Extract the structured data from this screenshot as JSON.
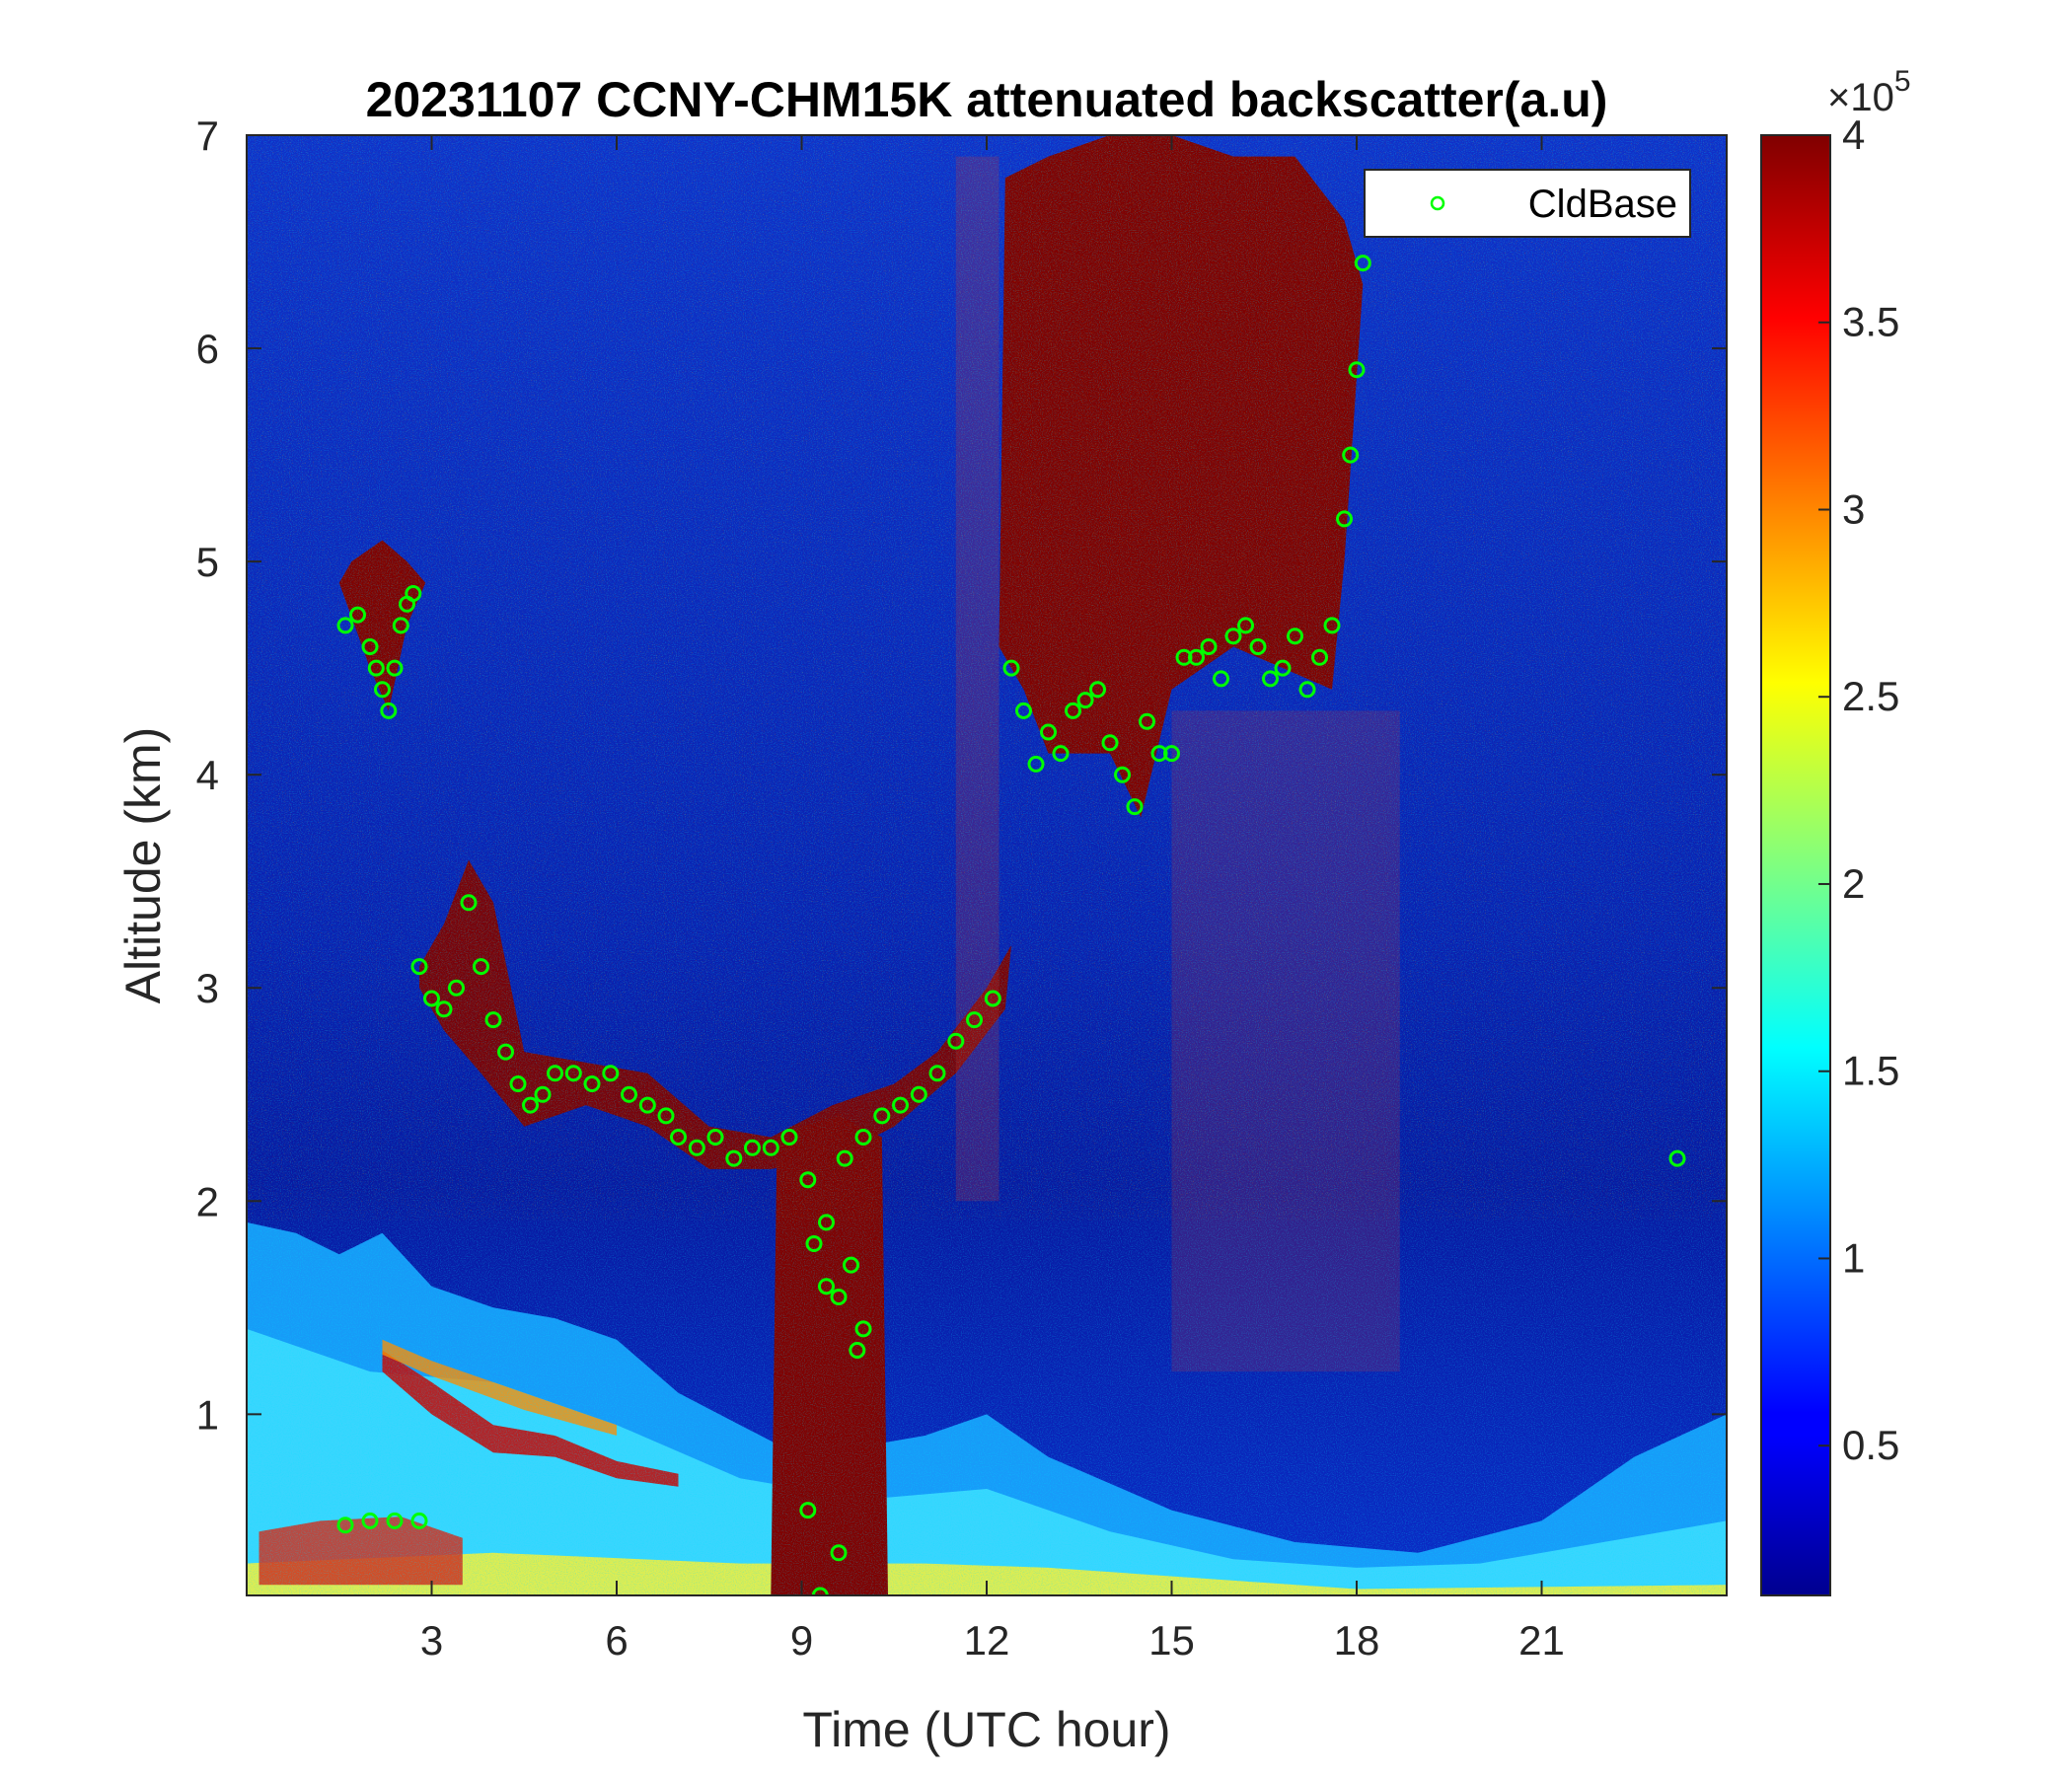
{
  "chart_data": {
    "type": "heatmap",
    "title": "20231107 CCNY-CHM15K attenuated backscatter(a.u)",
    "xlabel": "Time (UTC hour)",
    "ylabel": "Altitude (km)",
    "xlim": [
      0,
      24
    ],
    "ylim": [
      0.15,
      7
    ],
    "xticks": [
      3,
      6,
      9,
      12,
      15,
      18,
      21
    ],
    "yticks": [
      1,
      2,
      3,
      4,
      5,
      6,
      7
    ],
    "colorbar": {
      "colormap": "jet",
      "range": [
        10000,
        400000
      ],
      "exponent_label_prefix": "×10",
      "exponent_label_power": "5",
      "ticks": [
        0.5,
        1,
        1.5,
        2,
        2.5,
        3,
        3.5,
        4
      ],
      "tick_labels": [
        "0.5",
        "1",
        "1.5",
        "2",
        "2.5",
        "3",
        "3.5",
        "4"
      ]
    },
    "legend": {
      "entries": [
        "CldBase"
      ],
      "location": "top-right",
      "marker_color": "#00ff00"
    },
    "series": [
      {
        "name": "CldBase",
        "type": "scatter",
        "marker": "circle-open",
        "color": "#00ff00",
        "x": [
          1.6,
          1.8,
          2.0,
          2.1,
          2.2,
          2.3,
          2.4,
          2.5,
          2.6,
          2.7,
          2.8,
          3.0,
          3.2,
          3.4,
          3.6,
          3.8,
          4.0,
          4.2,
          4.4,
          4.6,
          4.8,
          5.0,
          5.3,
          5.6,
          5.9,
          6.2,
          6.5,
          6.8,
          7.0,
          7.3,
          7.6,
          7.9,
          8.2,
          8.5,
          8.8,
          9.1,
          9.4,
          9.7,
          10.0,
          10.3,
          10.6,
          10.9,
          11.2,
          11.5,
          11.8,
          12.1,
          12.4,
          12.6,
          12.8,
          13.0,
          13.2,
          13.4,
          13.6,
          13.8,
          14.0,
          14.2,
          14.4,
          14.6,
          14.8,
          15.0,
          15.2,
          15.4,
          15.6,
          15.8,
          16.0,
          16.2,
          16.4,
          16.6,
          16.8,
          17.0,
          17.2,
          17.4,
          17.6,
          17.8,
          17.9,
          18.0,
          18.1,
          9.2,
          9.4,
          9.6,
          9.8,
          10.0,
          9.1,
          9.6,
          9.3,
          9.9,
          2.0,
          2.4,
          2.8,
          1.6,
          23.2
        ],
        "y": [
          4.7,
          4.75,
          4.6,
          4.5,
          4.4,
          4.3,
          4.5,
          4.7,
          4.8,
          4.85,
          3.1,
          2.95,
          2.9,
          3.0,
          3.4,
          3.1,
          2.85,
          2.7,
          2.55,
          2.45,
          2.5,
          2.6,
          2.6,
          2.55,
          2.6,
          2.5,
          2.45,
          2.4,
          2.3,
          2.25,
          2.3,
          2.2,
          2.25,
          2.25,
          2.3,
          2.1,
          1.9,
          2.2,
          2.3,
          2.4,
          2.45,
          2.5,
          2.6,
          2.75,
          2.85,
          2.95,
          4.5,
          4.3,
          4.05,
          4.2,
          4.1,
          4.3,
          4.35,
          4.4,
          4.15,
          4.0,
          3.85,
          4.25,
          4.1,
          4.1,
          4.55,
          4.55,
          4.6,
          4.45,
          4.65,
          4.7,
          4.6,
          4.45,
          4.5,
          4.65,
          4.4,
          4.55,
          4.7,
          5.2,
          5.5,
          5.9,
          6.4,
          1.8,
          1.6,
          1.55,
          1.7,
          1.4,
          0.55,
          0.35,
          0.15,
          1.3,
          0.5,
          0.5,
          0.5,
          0.48,
          2.2
        ]
      }
    ]
  }
}
